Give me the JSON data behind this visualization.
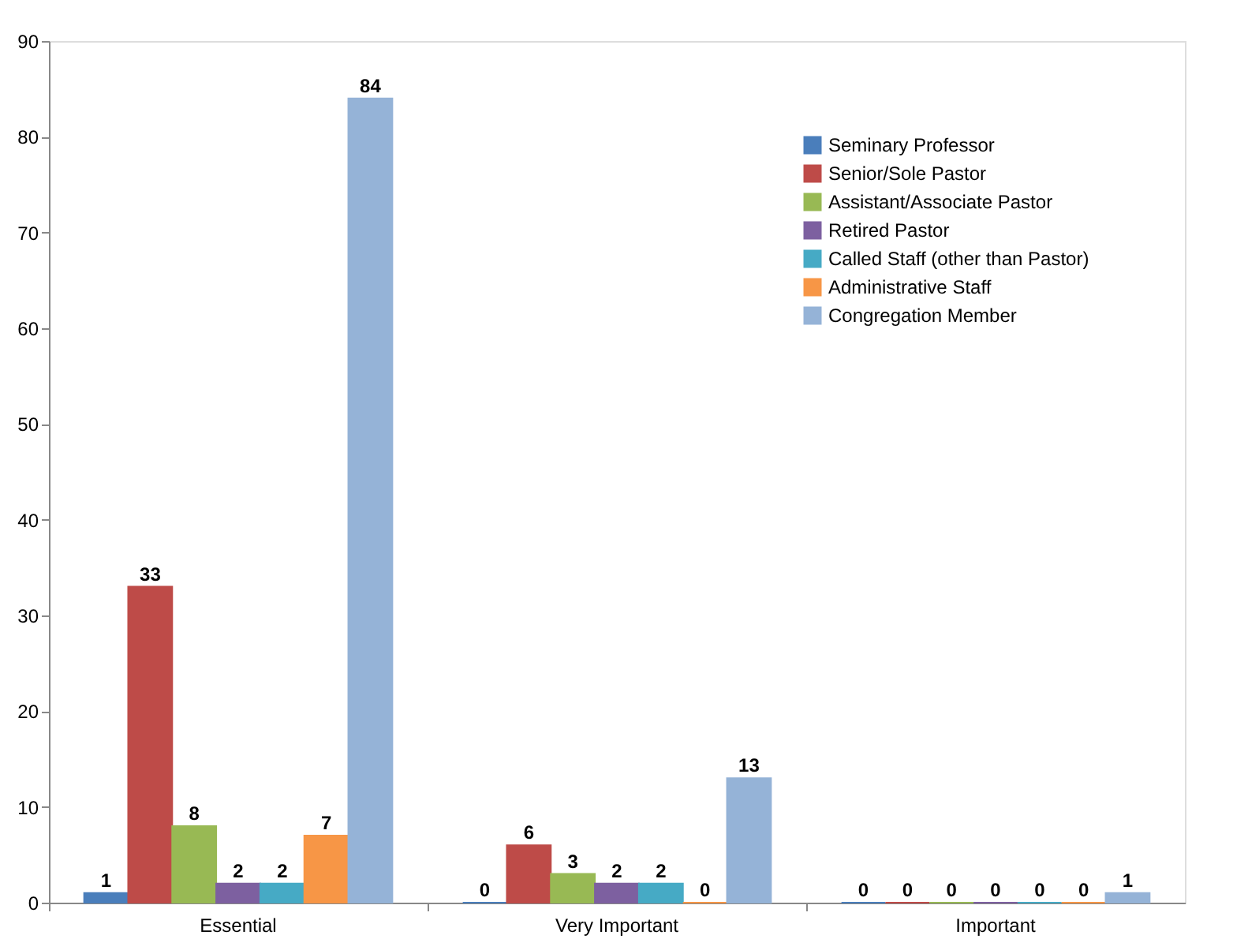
{
  "chart_data": {
    "type": "bar",
    "categories": [
      "Essential",
      "Very Important",
      "Important"
    ],
    "series": [
      {
        "name": "Seminary Professor",
        "color": "#4a7ebb",
        "values": [
          1,
          0,
          0
        ]
      },
      {
        "name": "Senior/Sole Pastor",
        "color": "#be4b48",
        "values": [
          33,
          6,
          0
        ]
      },
      {
        "name": "Assistant/Associate Pastor",
        "color": "#98b954",
        "values": [
          8,
          3,
          0
        ]
      },
      {
        "name": "Retired Pastor",
        "color": "#7d60a0",
        "values": [
          2,
          2,
          0
        ]
      },
      {
        "name": "Called Staff (other than Pastor)",
        "color": "#46aac5",
        "values": [
          2,
          2,
          0
        ]
      },
      {
        "name": "Administrative Staff",
        "color": "#f79646",
        "values": [
          7,
          0,
          0
        ]
      },
      {
        "name": "Congregation Member",
        "color": "#95b3d7",
        "values": [
          84,
          13,
          1
        ]
      }
    ],
    "ylim": [
      0,
      90
    ],
    "yticks": [
      0,
      10,
      20,
      30,
      40,
      50,
      60,
      70,
      80,
      90
    ],
    "grid": false,
    "legend": "top right",
    "data_labels": true
  }
}
